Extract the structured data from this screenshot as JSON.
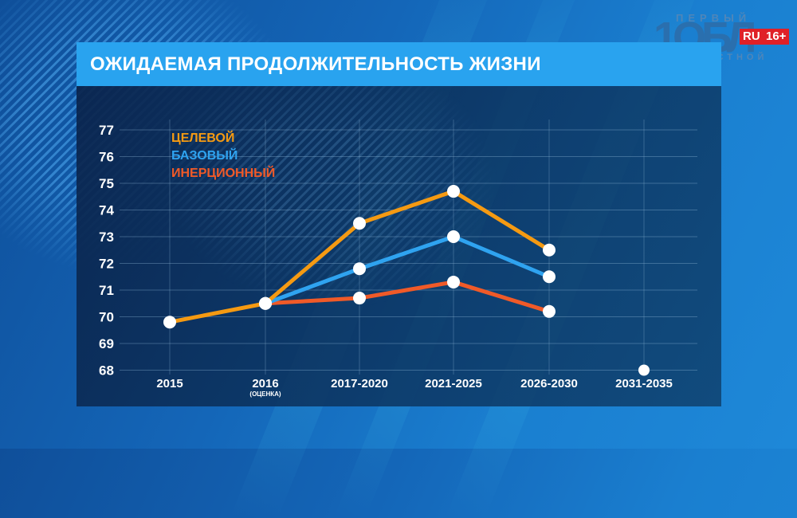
{
  "title": "ОЖИДАЕМАЯ ПРОДОЛЖИТЕЛЬНОСТЬ ЖИЗНИ",
  "logo": {
    "top_text": "ПЕРВЫЙ",
    "main_text": "1ОБЛ",
    "bottom_text": "ОБЛАСТНОЙ",
    "badge_ru": "RU",
    "badge_age": "16+"
  },
  "colors": {
    "header": "#29a3ef",
    "target": "#f59a12",
    "base": "#2fa3f0",
    "inertial": "#f05a28",
    "marker": "#ffffff"
  },
  "legend": {
    "target": "ЦЕЛЕВОЙ",
    "base": "БАЗОВЫЙ",
    "inertial": "ИНЕРЦИОННЫЙ"
  },
  "chart_data": {
    "type": "line",
    "title": "ОЖИДАЕМАЯ ПРОДОЛЖИТЕЛЬНОСТЬ ЖИЗНИ",
    "xlabel": "",
    "ylabel": "",
    "categories": [
      "2015",
      "2016",
      "2017-2020",
      "2021-2025",
      "2026-2030",
      "2031-2035"
    ],
    "category_sublabels": [
      "",
      "(ОЦЕНКА)",
      "",
      "",
      "",
      ""
    ],
    "yticks": [
      68,
      69,
      70,
      71,
      72,
      73,
      74,
      75,
      76,
      77
    ],
    "ylim": [
      68,
      77
    ],
    "grid": true,
    "legend_position": "top-left",
    "series": [
      {
        "name": "ЦЕЛЕВОЙ",
        "color": "#f59a12",
        "values": [
          69.8,
          70.5,
          73.5,
          74.7,
          72.5,
          null
        ]
      },
      {
        "name": "БАЗОВЫЙ",
        "color": "#2fa3f0",
        "values": [
          null,
          70.5,
          71.8,
          73.0,
          71.5,
          null
        ]
      },
      {
        "name": "ИНЕРЦИОННЫЙ",
        "color": "#f05a28",
        "values": [
          null,
          70.5,
          70.7,
          71.3,
          70.2,
          null
        ]
      }
    ],
    "standalone_points": [
      {
        "category": "2031-2035",
        "value": 68.0
      }
    ]
  }
}
